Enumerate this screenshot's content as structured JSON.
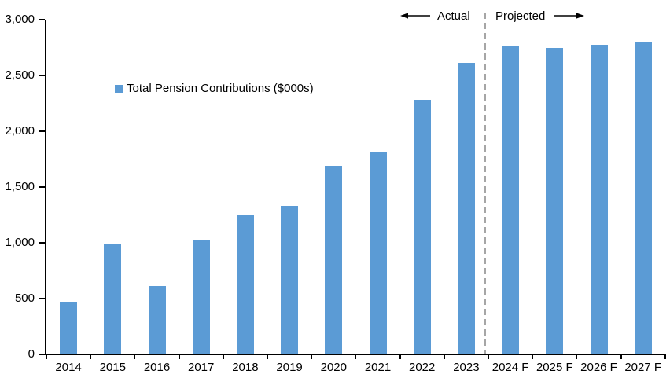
{
  "chart_data": {
    "type": "bar",
    "series_name": "Total Pension Contributions ($000s)",
    "categories": [
      "2014",
      "2015",
      "2016",
      "2017",
      "2018",
      "2019",
      "2020",
      "2021",
      "2022",
      "2023",
      "2024 F",
      "2025 F",
      "2026 F",
      "2027 F"
    ],
    "values": [
      475,
      995,
      615,
      1030,
      1245,
      1330,
      1690,
      1820,
      2285,
      2615,
      2760,
      2750,
      2775,
      2800
    ],
    "ylim": [
      0,
      3000
    ],
    "ytick_step": 500,
    "yticklabels": [
      "0",
      "500",
      "1,000",
      "1,500",
      "2,000",
      "2,500",
      "3,000"
    ],
    "grid": false,
    "legend": {
      "label": "Total Pension Contributions ($000s)",
      "position": "inside-top-left"
    },
    "annotations": {
      "actual": "Actual",
      "projected": "Projected",
      "separator_after_category": "2023"
    },
    "colors": {
      "bar": "#5B9BD5",
      "axis": "#000000",
      "text": "#000000",
      "separator": "#A6A6A6",
      "background": "#FFFFFF"
    }
  }
}
